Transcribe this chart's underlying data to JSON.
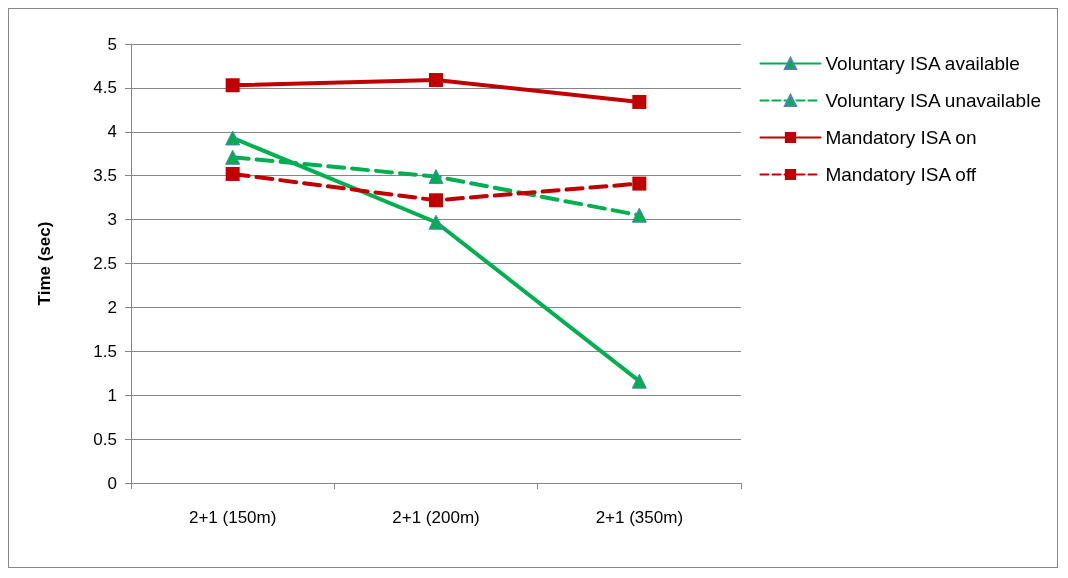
{
  "chart_data": {
    "type": "line",
    "ylabel": "Time (sec)",
    "categories": [
      "2+1 (150m)",
      "2+1 (200m)",
      "2+1 (350m)"
    ],
    "series": [
      {
        "name": "Voluntary ISA available",
        "color": "#00b050",
        "marker": "triangle",
        "line_style": "solid",
        "values": [
          3.93,
          2.97,
          1.16
        ]
      },
      {
        "name": "Voluntary ISA unavailable",
        "color": "#00b050",
        "marker": "triangle",
        "line_style": "dashed",
        "values": [
          3.71,
          3.49,
          3.05
        ]
      },
      {
        "name": "Mandatory ISA on",
        "color": "#c00000",
        "marker": "square",
        "line_style": "solid",
        "values": [
          4.53,
          4.59,
          4.34
        ]
      },
      {
        "name": "Mandatory ISA off",
        "color": "#c00000",
        "marker": "square",
        "line_style": "dashed",
        "values": [
          3.52,
          3.22,
          3.41
        ]
      }
    ],
    "ylim": [
      0,
      5
    ],
    "yticks": [
      0,
      0.5,
      1,
      1.5,
      2,
      2.5,
      3,
      3.5,
      4,
      4.5,
      5
    ],
    "grid": "y",
    "legend": "right"
  }
}
